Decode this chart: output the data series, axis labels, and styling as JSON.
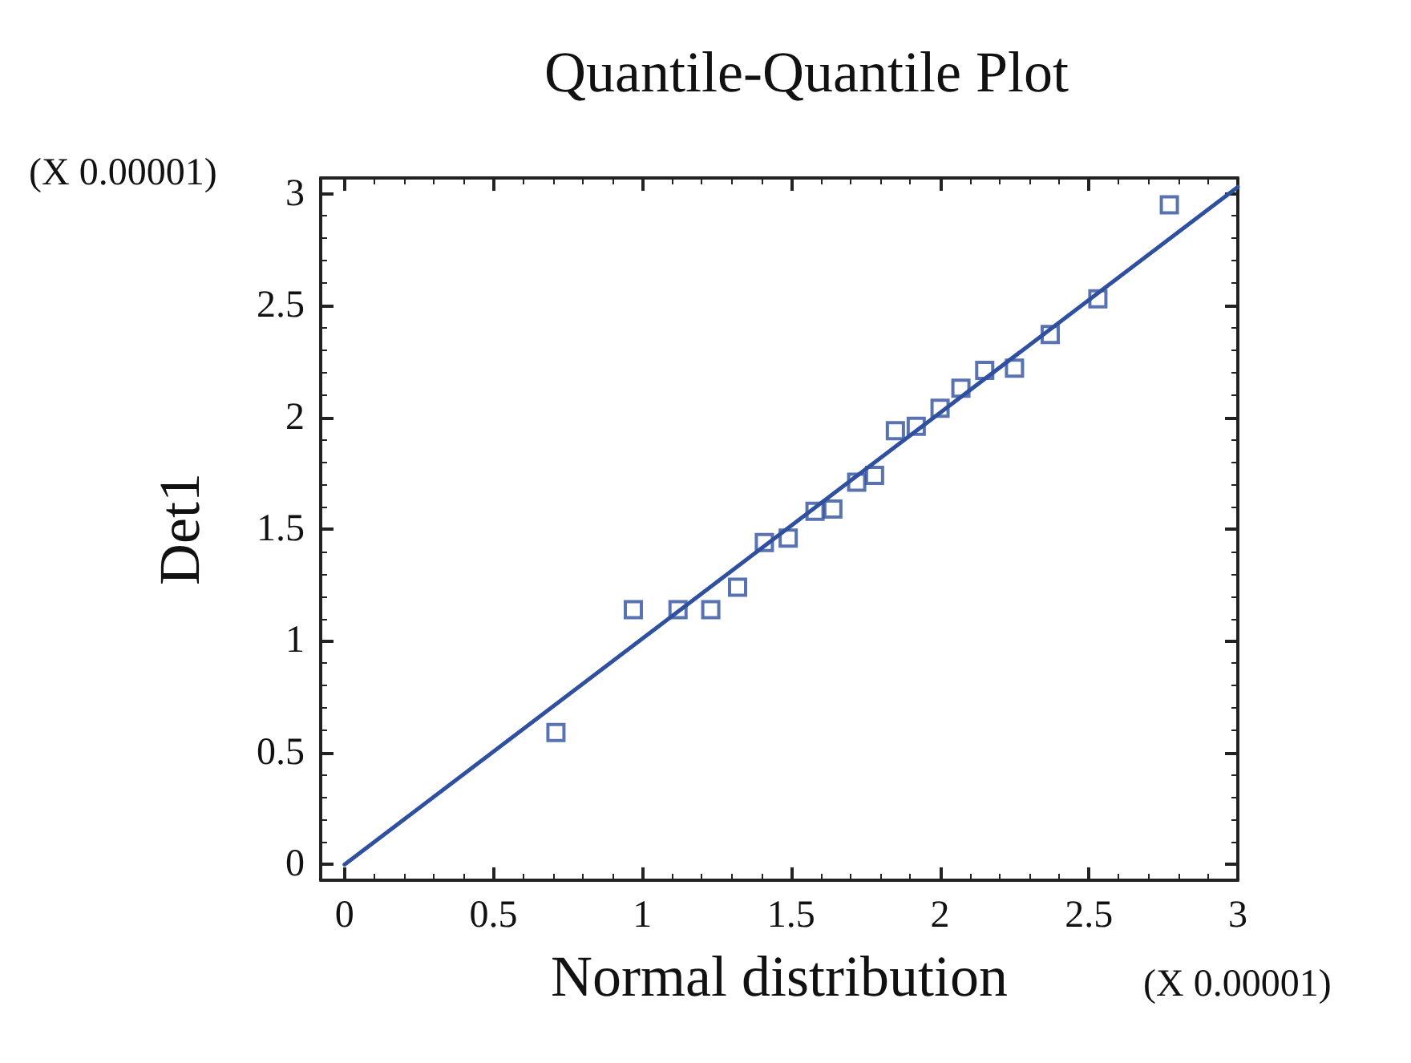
{
  "chart_data": {
    "type": "scatter",
    "title": "Quantile-Quantile Plot",
    "xlabel": "Normal distribution",
    "ylabel": "Det1",
    "annotations": [
      "(X 0.00001)",
      "(X 0.00001)"
    ],
    "xlim": [
      -0.08,
      3
    ],
    "ylim": [
      -0.07,
      3.07
    ],
    "xticks": [
      0,
      0.5,
      1,
      1.5,
      2,
      2.5,
      3
    ],
    "yticks": [
      0,
      0.5,
      1,
      1.5,
      2,
      2.5,
      3
    ],
    "marker": "square",
    "grid": false,
    "series": [
      {
        "color": "#2f4f9f",
        "x": [
          0.71,
          0.97,
          1.12,
          1.23,
          1.32,
          1.41,
          1.49,
          1.58,
          1.64,
          1.72,
          1.78,
          1.85,
          1.92,
          2.0,
          2.07,
          2.15,
          2.25,
          2.37,
          2.53,
          2.77
        ],
        "values": [
          0.59,
          1.14,
          1.14,
          1.14,
          1.24,
          1.44,
          1.46,
          1.58,
          1.59,
          1.71,
          1.74,
          1.94,
          1.96,
          2.04,
          2.13,
          2.21,
          2.22,
          2.37,
          2.53,
          2.95
        ]
      },
      {
        "type": "line",
        "color": "#2f4f9f",
        "x": [
          0,
          3
        ],
        "values": [
          0,
          3.03
        ],
        "marker": "none",
        "line_style": "solid"
      }
    ]
  }
}
